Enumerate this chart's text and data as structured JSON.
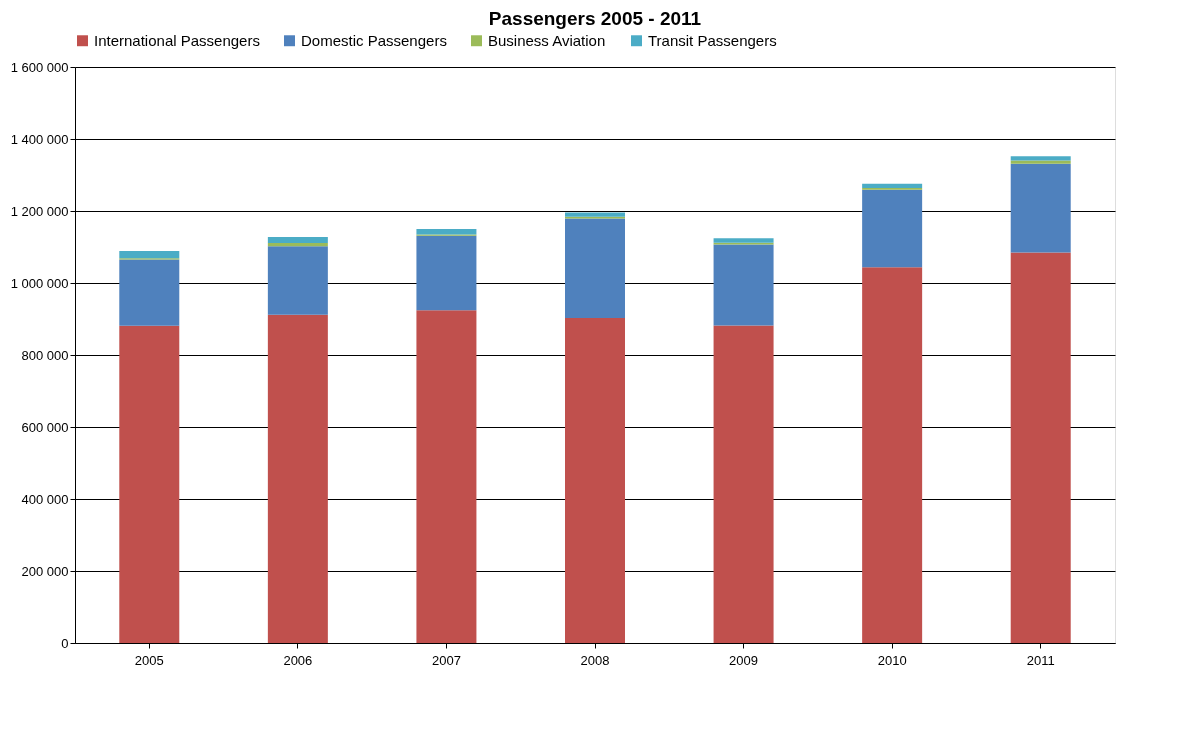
{
  "chart_data": {
    "type": "bar",
    "title": "Passengers 2005 - 2011",
    "stacked": true,
    "legend": "top",
    "grid": "y",
    "categories": [
      "2005",
      "2006",
      "2007",
      "2008",
      "2009",
      "2010",
      "2011"
    ],
    "series": [
      {
        "name": "International Passengers",
        "color": "#c0504d",
        "values": [
          881000,
          912000,
          924000,
          903000,
          882000,
          1044000,
          1085000
        ]
      },
      {
        "name": "Domestic Passengers",
        "color": "#4f81bd",
        "values": [
          184000,
          190000,
          207000,
          276000,
          225000,
          215000,
          246000
        ]
      },
      {
        "name": "Business Aviation",
        "color": "#9bbb59",
        "values": [
          4000,
          9000,
          4000,
          5000,
          5000,
          5000,
          9000
        ]
      },
      {
        "name": "Transit Passengers",
        "color": "#4bacc6",
        "values": [
          20000,
          17000,
          15000,
          12000,
          12000,
          12000,
          12000
        ]
      }
    ],
    "ylim": [
      0,
      1600000
    ],
    "yticks": [
      0,
      {
        "value": 200000,
        "label": "200 000"
      },
      {
        "value": 400000,
        "label": "400 000"
      },
      {
        "value": 600000,
        "label": "600 000"
      },
      {
        "value": 800000,
        "label": "800 000"
      },
      {
        "value": 1000000,
        "label": "1 000 000"
      },
      {
        "value": 1200000,
        "label": "1 200 000"
      },
      {
        "value": 1400000,
        "label": "1 400 000"
      },
      {
        "value": 1600000,
        "label": "1 600 000"
      }
    ]
  }
}
